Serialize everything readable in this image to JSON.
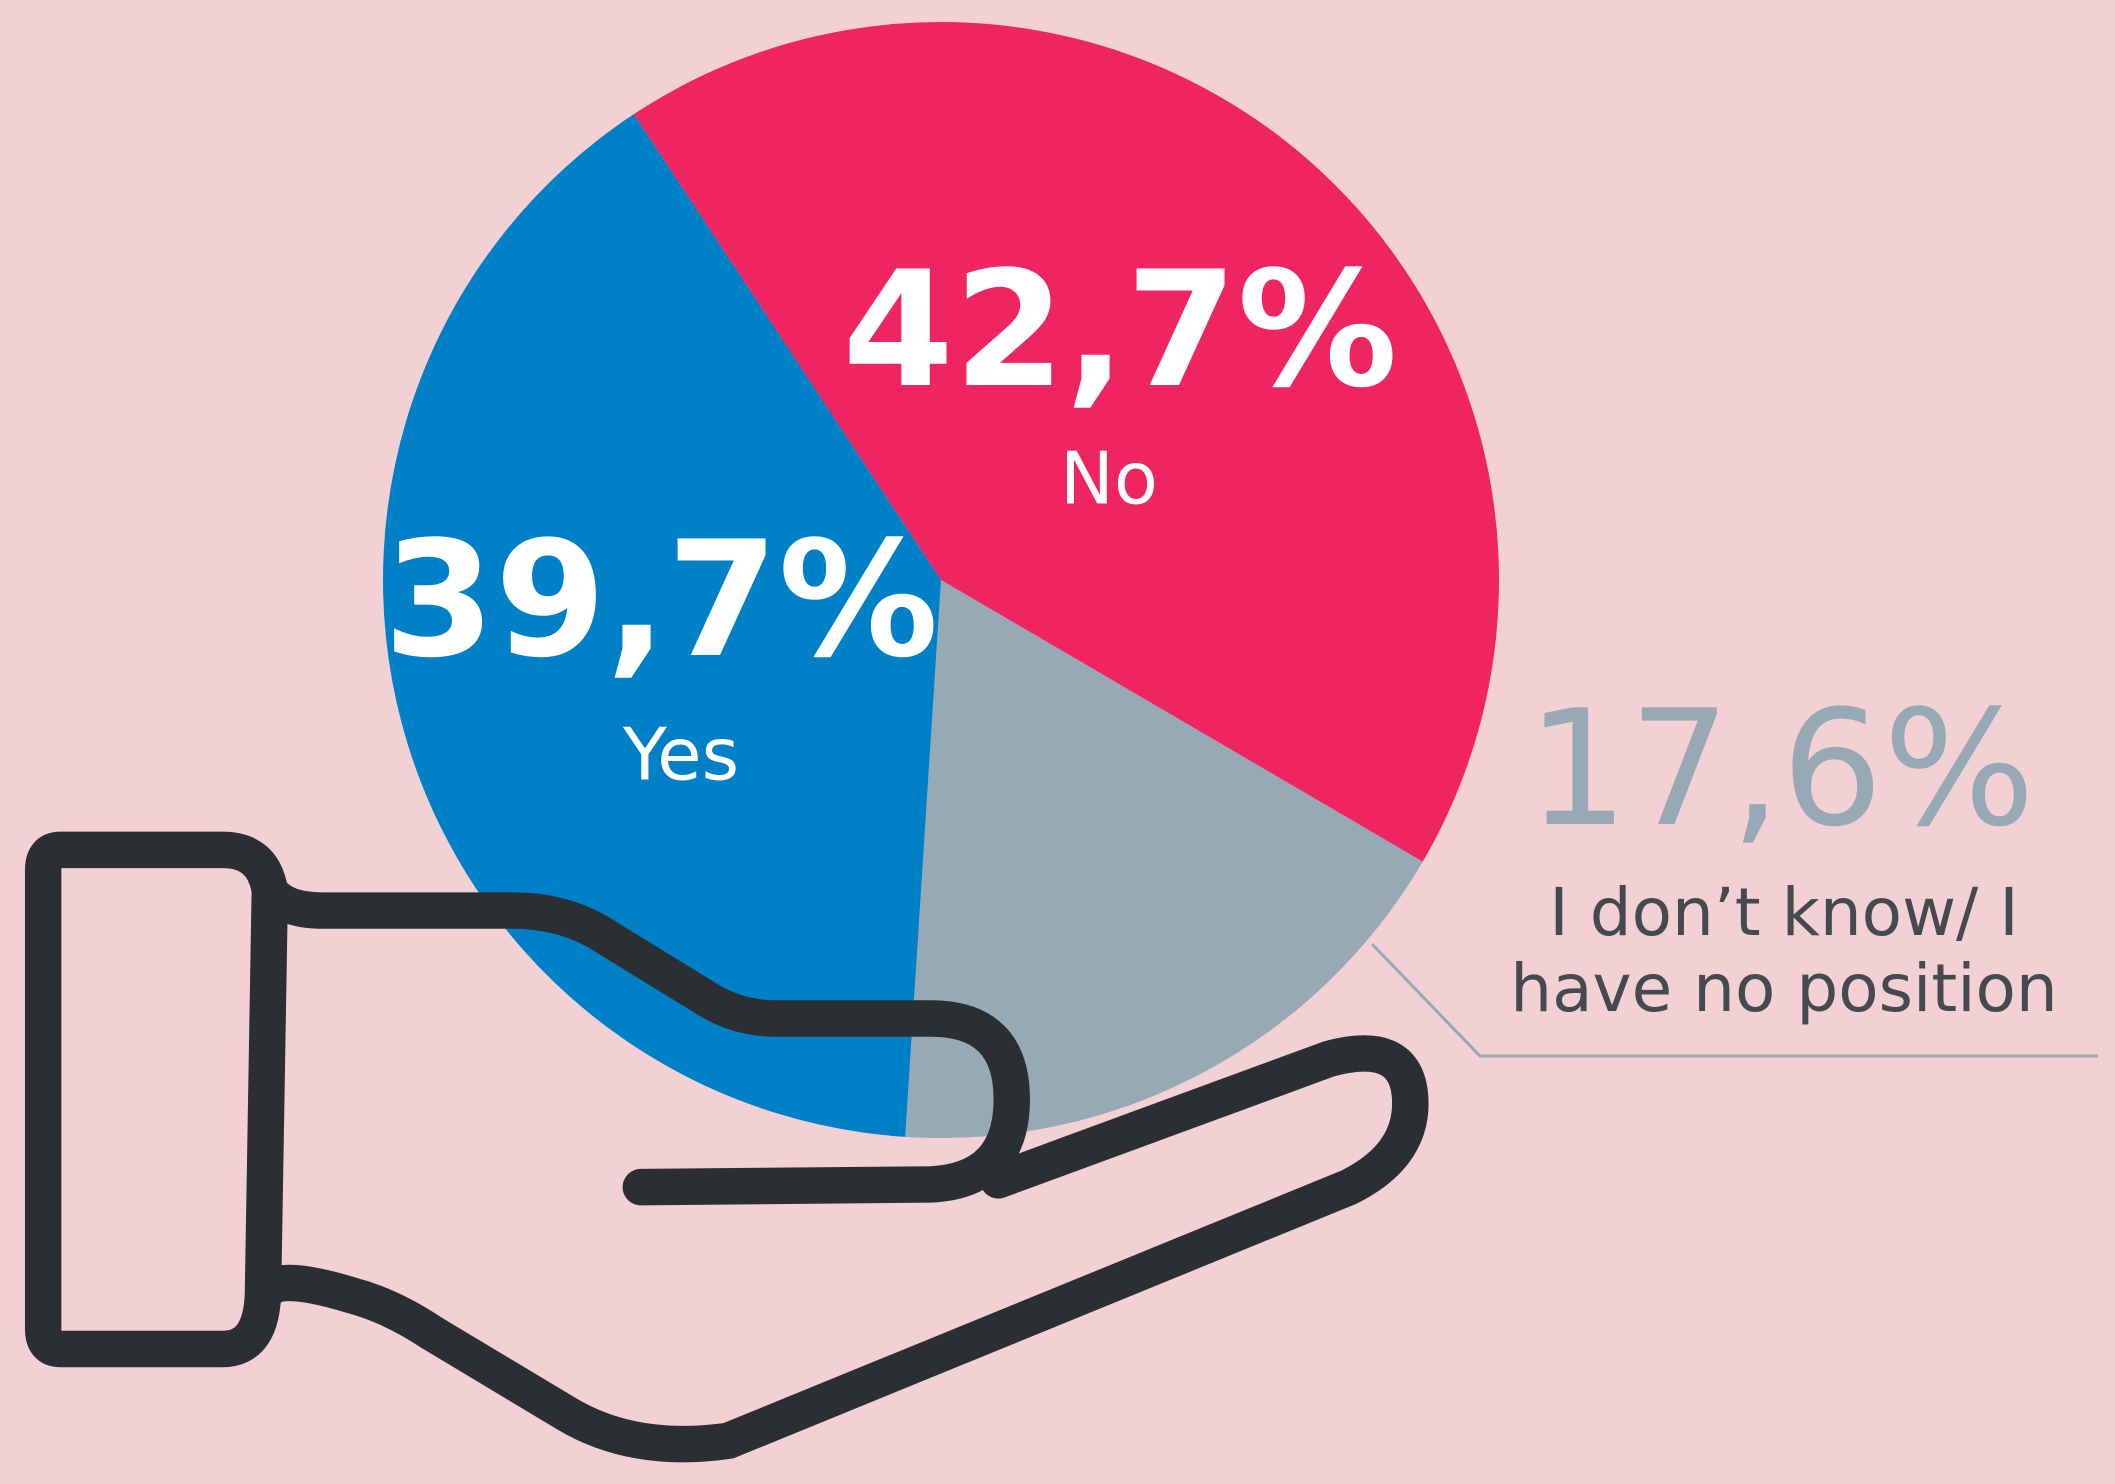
{
  "chart_data": {
    "type": "pie",
    "categories": [
      "No",
      "I don’t know/ I have no position",
      "Yes"
    ],
    "values": [
      42.7,
      17.6,
      39.7
    ],
    "value_labels": [
      "42,7%",
      "17,6%",
      "39,7%"
    ],
    "colors": [
      "#ee2560",
      "#97a9b4",
      "#0080c6"
    ]
  }
}
